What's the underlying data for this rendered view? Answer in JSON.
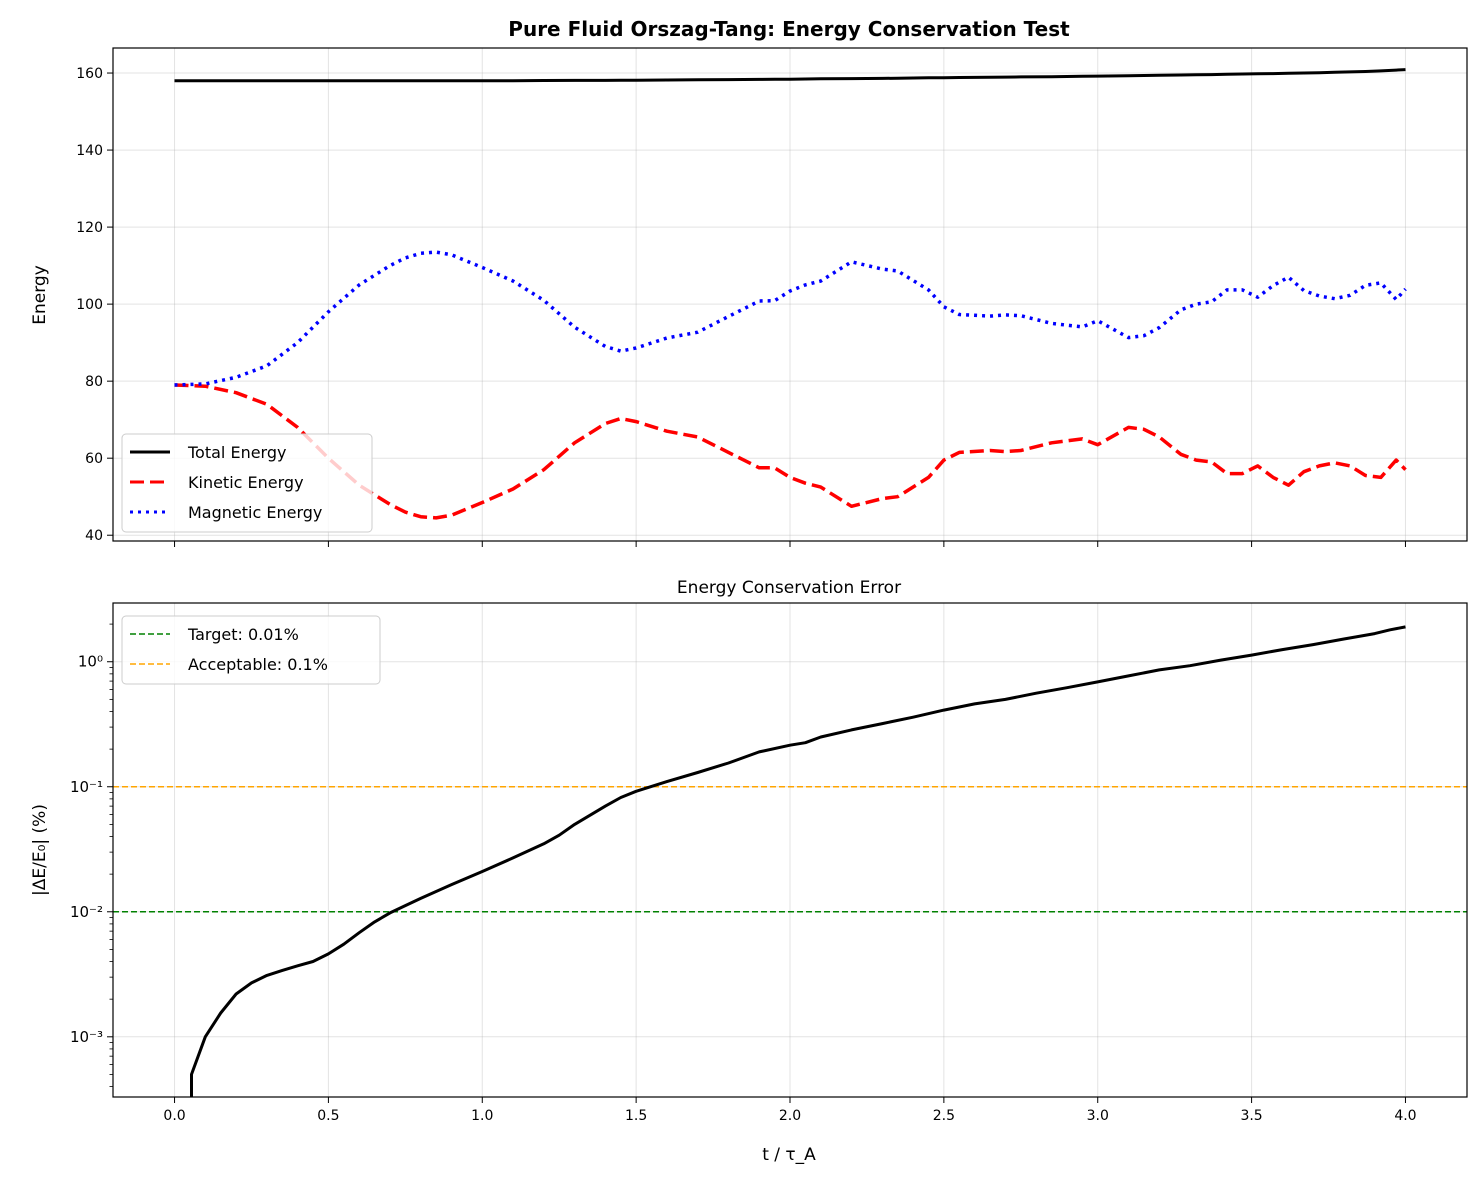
{
  "title": "Pure Fluid Orszag-Tang: Energy Conservation Test",
  "chart_data": [
    {
      "type": "line",
      "title": "Pure Fluid Orszag-Tang: Energy Conservation Test",
      "xlabel": "",
      "ylabel": "Energy",
      "xlim": [
        -0.2,
        4.2
      ],
      "ylim": [
        38.5,
        166.5
      ],
      "xticks": [
        0.0,
        0.5,
        1.0,
        1.5,
        2.0,
        2.5,
        3.0,
        3.5,
        4.0
      ],
      "yticks": [
        40,
        60,
        80,
        100,
        120,
        140,
        160
      ],
      "ytick_labels": [
        "40",
        "60",
        "80",
        "100",
        "120",
        "140",
        "160"
      ],
      "grid": true,
      "legend": "lower-left",
      "x": [
        0,
        0.1,
        0.2,
        0.3,
        0.4,
        0.5,
        0.6,
        0.7,
        0.75,
        0.8,
        0.85,
        0.9,
        1.0,
        1.1,
        1.2,
        1.3,
        1.4,
        1.45,
        1.5,
        1.6,
        1.7,
        1.8,
        1.9,
        1.95,
        2.0,
        2.05,
        2.1,
        2.2,
        2.3,
        2.35,
        2.45,
        2.5,
        2.55,
        2.65,
        2.7,
        2.75,
        2.85,
        2.95,
        3.0,
        3.1,
        3.15,
        3.2,
        3.27,
        3.32,
        3.37,
        3.42,
        3.47,
        3.52,
        3.57,
        3.62,
        3.67,
        3.72,
        3.77,
        3.82,
        3.87,
        3.92,
        3.97,
        4.0
      ],
      "series": [
        {
          "name": "Total Energy",
          "color": "#000000",
          "style": "solid",
          "values": [
            158.0,
            158.0,
            158.0,
            158.0,
            158.0,
            158.0,
            158.0,
            158.0,
            158.0,
            158.0,
            158.0,
            158.0,
            158.0,
            158.0,
            158.05,
            158.1,
            158.1,
            158.15,
            158.15,
            158.2,
            158.25,
            158.3,
            158.35,
            158.4,
            158.4,
            158.45,
            158.5,
            158.55,
            158.6,
            158.65,
            158.75,
            158.8,
            158.85,
            158.9,
            158.95,
            159.0,
            159.05,
            159.15,
            159.2,
            159.3,
            159.35,
            159.4,
            159.5,
            159.55,
            159.6,
            159.7,
            159.75,
            159.8,
            159.85,
            159.95,
            160.0,
            160.1,
            160.2,
            160.3,
            160.4,
            160.55,
            160.75,
            160.9
          ]
        },
        {
          "name": "Kinetic Energy",
          "color": "#ff0000",
          "style": "dashed",
          "values": [
            79,
            78.7,
            77,
            74,
            68,
            60,
            53,
            48,
            46,
            44.8,
            44.5,
            45.2,
            48.5,
            52,
            57,
            64,
            69,
            70.3,
            69.5,
            67,
            65.5,
            61.5,
            57.5,
            57.5,
            55,
            53.5,
            52.5,
            47.5,
            49.5,
            50,
            55,
            59.5,
            61.5,
            62,
            61.7,
            62,
            64,
            65,
            63.5,
            68,
            67.5,
            65.5,
            61,
            59.5,
            59,
            56,
            56,
            58,
            55,
            53,
            56.5,
            58,
            58.8,
            58,
            55.5,
            55,
            59.5,
            57
          ]
        },
        {
          "name": "Magnetic Energy",
          "color": "#0000ff",
          "style": "dotted",
          "values": [
            79,
            79.3,
            81,
            84,
            90,
            98,
            105,
            110,
            112,
            113.2,
            113.5,
            112.8,
            109.5,
            106,
            101,
            94,
            89,
            87.8,
            88.6,
            91.2,
            92.7,
            96.8,
            100.8,
            100.9,
            103.4,
            105,
            106,
            111,
            109.1,
            108.6,
            103.7,
            99.3,
            97.3,
            96.9,
            97.2,
            97,
            95,
            94.1,
            95.7,
            91.3,
            91.8,
            93.9,
            98.5,
            100,
            100.6,
            103.7,
            103.7,
            101.8,
            104.8,
            107,
            103.5,
            102.1,
            101.4,
            102.3,
            104.9,
            105.5,
            101.2,
            103.9
          ]
        }
      ]
    },
    {
      "type": "line",
      "title": "Energy Conservation Error",
      "xlabel": "t / τ_A",
      "ylabel": "|ΔE/E₀| (%)",
      "xlim": [
        -0.2,
        4.2
      ],
      "yscale": "log",
      "ylim": [
        0.00033,
        2.95
      ],
      "xticks": [
        0.0,
        0.5,
        1.0,
        1.5,
        2.0,
        2.5,
        3.0,
        3.5,
        4.0
      ],
      "xtick_labels": [
        "0.0",
        "0.5",
        "1.0",
        "1.5",
        "2.0",
        "2.5",
        "3.0",
        "3.5",
        "4.0"
      ],
      "yticks": [
        0.001,
        0.01,
        0.1,
        1
      ],
      "ytick_labels": [
        "10⁻³",
        "10⁻²",
        "10⁻¹",
        "10⁰"
      ],
      "grid": true,
      "legend": "upper-left",
      "hlines": [
        {
          "name": "Target: 0.01%",
          "y": 0.01,
          "color": "#008000",
          "style": "dashed"
        },
        {
          "name": "Acceptable: 0.1%",
          "y": 0.1,
          "color": "#ffa500",
          "style": "dashed"
        }
      ],
      "series": [
        {
          "color": "#000000",
          "style": "solid",
          "x": [
            0.055,
            0.055,
            0.1,
            0.15,
            0.2,
            0.25,
            0.3,
            0.35,
            0.4,
            0.45,
            0.5,
            0.55,
            0.6,
            0.65,
            0.7,
            0.75,
            0.8,
            0.9,
            1.0,
            1.1,
            1.2,
            1.25,
            1.3,
            1.4,
            1.45,
            1.5,
            1.6,
            1.7,
            1.8,
            1.9,
            2.0,
            2.05,
            2.1,
            2.2,
            2.3,
            2.4,
            2.5,
            2.6,
            2.7,
            2.8,
            2.9,
            3.0,
            3.1,
            3.2,
            3.3,
            3.4,
            3.5,
            3.6,
            3.7,
            3.8,
            3.9,
            3.95,
            4.0
          ],
          "values": [
            0.0003,
            0.0005,
            0.001,
            0.00155,
            0.0022,
            0.0027,
            0.0031,
            0.0034,
            0.0037,
            0.004,
            0.0046,
            0.0055,
            0.0068,
            0.0083,
            0.0098,
            0.0112,
            0.0128,
            0.0165,
            0.021,
            0.027,
            0.035,
            0.041,
            0.05,
            0.07,
            0.082,
            0.092,
            0.11,
            0.13,
            0.155,
            0.19,
            0.215,
            0.225,
            0.25,
            0.285,
            0.32,
            0.36,
            0.41,
            0.46,
            0.5,
            0.56,
            0.62,
            0.69,
            0.77,
            0.86,
            0.93,
            1.03,
            1.13,
            1.25,
            1.37,
            1.52,
            1.68,
            1.8,
            1.9
          ]
        }
      ]
    }
  ]
}
